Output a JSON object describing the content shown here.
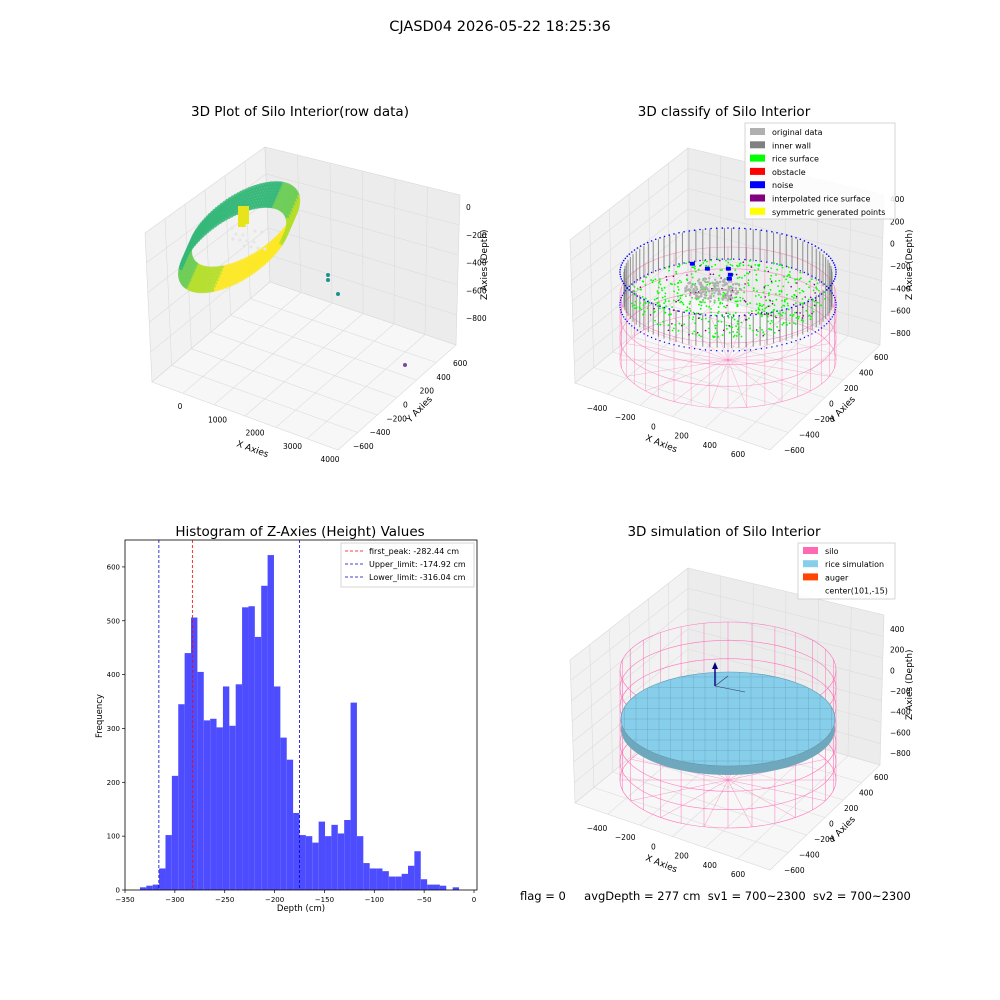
{
  "figure": {
    "suptitle": "CJASD04 2026-05-22 18:25:36",
    "footer": {
      "flag": "flag = 0",
      "avg_depth": "avgDepth = 277 cm",
      "sv1": "sv1 = 700~2300",
      "sv2": "sv2 = 700~2300"
    }
  },
  "colors": {
    "histogram_bar": "#4d4dff",
    "first_peak_line": "#ff0000",
    "limit_line": "#0000cc",
    "silo_wire": "#ff69b4",
    "rice_simulation": "#87ceeb",
    "auger": "#ff4500",
    "inner_wall": "#808080",
    "rice_surface": "#00ff00",
    "obstacle": "#ff0000",
    "noise": "#0000ff",
    "interpolated": "#800080",
    "symmetric": "#ffff00",
    "original": "#b0b0b0"
  },
  "chart_data": [
    {
      "type": "scatter3d",
      "title": "3D Plot of Silo Interior(row data)",
      "xlabel": "X Axies",
      "ylabel": "Y Axies",
      "zlabel": "Z Axies (Depth)",
      "x_ticks": [
        "0",
        "1000",
        "2000",
        "3000",
        "4000"
      ],
      "y_ticks": [
        "−600",
        "−400",
        "−200",
        "0",
        "200",
        "400",
        "600"
      ],
      "z_ticks": [
        "−800",
        "−600",
        "−400",
        "−200",
        "0"
      ],
      "colormap": "viridis",
      "outliers": [
        {
          "x": 1900,
          "y": 100,
          "z": -430
        },
        {
          "x": 1950,
          "y": 120,
          "z": -500
        },
        {
          "x": 3800,
          "y": 200,
          "z": -870
        }
      ]
    },
    {
      "type": "scatter3d",
      "title": "3D classify of Silo Interior",
      "xlabel": "X Axies",
      "ylabel": "Y Axies",
      "zlabel": "Z Axies (Depth)",
      "x_ticks": [
        "−400",
        "−200",
        "0",
        "200",
        "400",
        "600"
      ],
      "y_ticks": [
        "−600",
        "−400",
        "−200",
        "0",
        "200",
        "400",
        "600"
      ],
      "z_ticks": [
        "−800",
        "−600",
        "−400",
        "−200",
        "0",
        "200",
        "400"
      ],
      "legend": [
        "original data",
        "inner wall",
        "rice surface",
        "obstacle",
        "noise",
        "interpolated rice surface",
        "symmetric generated points"
      ],
      "legend_position": "top-right"
    },
    {
      "type": "bar",
      "title": "Histogram of Z-Axies (Height) Values",
      "xlabel": "Depth (cm)",
      "ylabel": "Frequency",
      "xlim": [
        -350,
        3
      ],
      "ylim": [
        0,
        650
      ],
      "x_ticks": [
        -350,
        -300,
        -250,
        -200,
        -150,
        -100,
        -50,
        0
      ],
      "y_ticks": [
        0,
        100,
        200,
        300,
        400,
        500,
        600
      ],
      "bin_start": -335,
      "bin_width": 6.4,
      "values": [
        5,
        8,
        10,
        40,
        102,
        212,
        345,
        440,
        506,
        405,
        315,
        318,
        302,
        378,
        305,
        382,
        525,
        527,
        470,
        565,
        622,
        378,
        283,
        242,
        143,
        102,
        100,
        88,
        127,
        100,
        121,
        105,
        130,
        348,
        100,
        50,
        40,
        40,
        35,
        25,
        25,
        30,
        45,
        72,
        20,
        10,
        10,
        8,
        0,
        5
      ],
      "lines": [
        {
          "label": "first_peak: -282.44 cm",
          "x": -282.44,
          "style": "red"
        },
        {
          "label": "Upper_limit: -174.92 cm",
          "x": -174.92,
          "style": "blue"
        },
        {
          "label": "Lower_limit: -316.04 cm",
          "x": -316.04,
          "style": "blue"
        }
      ],
      "legend_position": "top-right"
    },
    {
      "type": "surface3d",
      "title": "3D simulation of Silo Interior",
      "xlabel": "X Axies",
      "ylabel": "Y Axies",
      "zlabel": "Z Axies (Depth)",
      "x_ticks": [
        "−400",
        "−200",
        "0",
        "200",
        "400",
        "600"
      ],
      "y_ticks": [
        "−600",
        "−400",
        "−200",
        "0",
        "200",
        "400",
        "600"
      ],
      "z_ticks": [
        "−800",
        "−600",
        "−400",
        "−200",
        "0",
        "200",
        "400"
      ],
      "legend": [
        "silo",
        "rice simulation",
        "auger",
        "center(101,-15)"
      ],
      "legend_position": "top-right"
    }
  ]
}
